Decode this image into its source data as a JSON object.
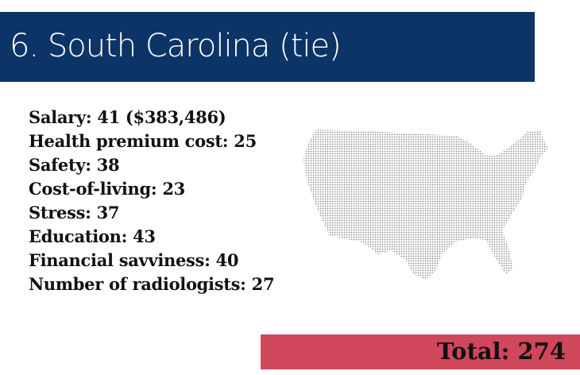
{
  "header": {
    "title": "6. South Carolina (tie)"
  },
  "stats": [
    "Salary: 41 ($383,486)",
    "Health premium cost: 25",
    "Safety: 38",
    "Cost-of-living: 23",
    "Stress: 37",
    "Education: 43",
    "Financial savviness: 40",
    "Number of radiologists: 27"
  ],
  "total": "Total: 274"
}
